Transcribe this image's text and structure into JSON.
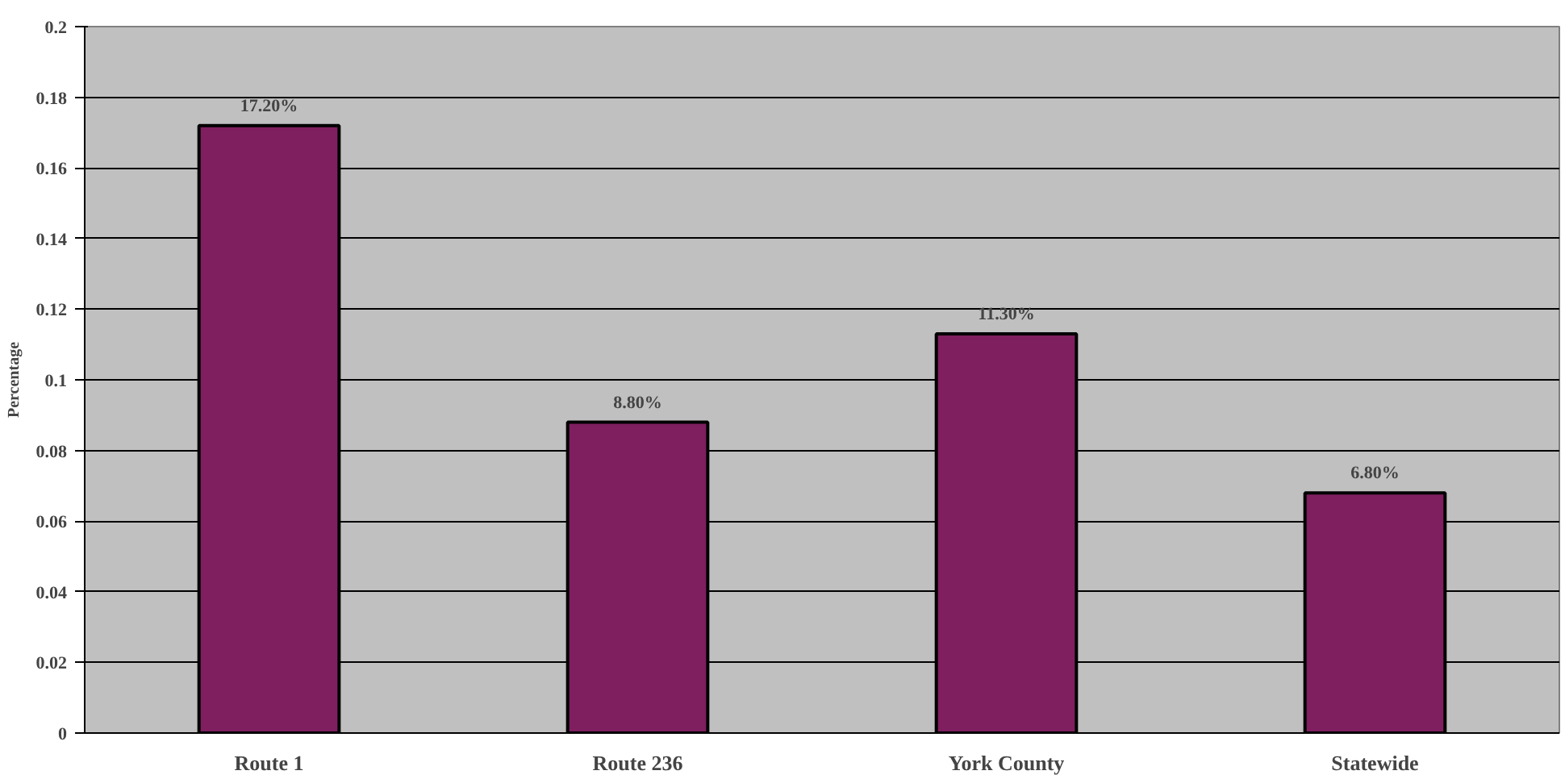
{
  "chart_data": {
    "type": "bar",
    "ylabel": "Percentage",
    "categories": [
      "Route 1",
      "Route 236",
      "York County",
      "Statewide"
    ],
    "values": [
      0.172,
      0.088,
      0.113,
      0.068
    ],
    "value_labels": [
      "17.20%",
      "8.80%",
      "11.30%",
      "6.80%"
    ],
    "color": "#7f1f5f",
    "ylim": [
      0,
      0.2
    ],
    "yticks": [
      0,
      0.02,
      0.04,
      0.06,
      0.08,
      0.1,
      0.12,
      0.14,
      0.16,
      0.18,
      0.2
    ],
    "grid": "y"
  }
}
